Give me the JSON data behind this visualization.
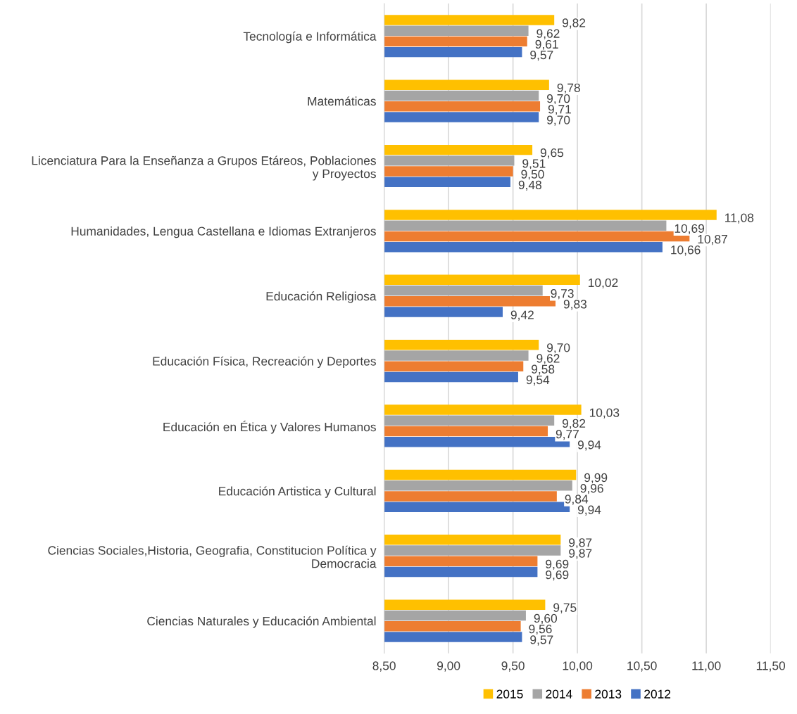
{
  "chart_data": {
    "type": "bar",
    "orientation": "horizontal",
    "categories": [
      "Tecnología e Informática",
      "Matemáticas",
      "Licenciatura Para la Enseñanza a Grupos Etáreos, Poblaciones\ny Proyectos",
      "Humanidades, Lengua Castellana e Idiomas Extranjeros",
      "Educación Religiosa",
      "Educación Física, Recreación y Deportes",
      "Educación en Ética y Valores Humanos",
      "Educación Artistica y Cultural",
      "Ciencias Sociales,Historia, Geografia, Constitucion Política y\nDemocracia",
      "Ciencias Naturales y Educación Ambiental"
    ],
    "series": [
      {
        "name": "2015",
        "color": "#ffc000",
        "values": [
          9.82,
          9.78,
          9.65,
          11.08,
          10.02,
          9.7,
          10.03,
          9.99,
          9.87,
          9.75
        ],
        "value_labels": [
          "9,82",
          "9,78",
          "9,65",
          "11,08",
          "10,02",
          "9,70",
          "10,03",
          "9,99",
          "9,87",
          "9,75"
        ]
      },
      {
        "name": "2014",
        "color": "#a5a5a5",
        "values": [
          9.62,
          9.7,
          9.51,
          10.69,
          9.73,
          9.62,
          9.82,
          9.96,
          9.87,
          9.6
        ],
        "value_labels": [
          "9,62",
          "9,70",
          "9,51",
          "10,69",
          "9,73",
          "9,62",
          "9,82",
          "9,96",
          "9,87",
          "9,60"
        ]
      },
      {
        "name": "2013",
        "color": "#ed7d31",
        "values": [
          9.61,
          9.71,
          9.5,
          10.87,
          9.83,
          9.58,
          9.77,
          9.84,
          9.69,
          9.56
        ],
        "value_labels": [
          "9,61",
          "9,71",
          "9,50",
          "10,87",
          "9,83",
          "9,58",
          "9,77",
          "9,84",
          "9,69",
          "9,56"
        ]
      },
      {
        "name": "2012",
        "color": "#4472c4",
        "values": [
          9.57,
          9.7,
          9.48,
          10.66,
          9.42,
          9.54,
          9.94,
          9.94,
          9.69,
          9.57
        ],
        "value_labels": [
          "9,57",
          "9,70",
          "9,48",
          "10,66",
          "9,42",
          "9,54",
          "9,94",
          "9,94",
          "9,69",
          "9,57"
        ]
      }
    ],
    "xlim": [
      8.5,
      11.5
    ],
    "xticks": [
      {
        "value": 8.5,
        "label": "8,50"
      },
      {
        "value": 9.0,
        "label": "9,00"
      },
      {
        "value": 9.5,
        "label": "9,50"
      },
      {
        "value": 10.0,
        "label": "10,00"
      },
      {
        "value": 10.5,
        "label": "10,50"
      },
      {
        "value": 11.0,
        "label": "11,00"
      },
      {
        "value": 11.5,
        "label": "11,50"
      }
    ],
    "grid": "x",
    "legend": "bottom"
  }
}
